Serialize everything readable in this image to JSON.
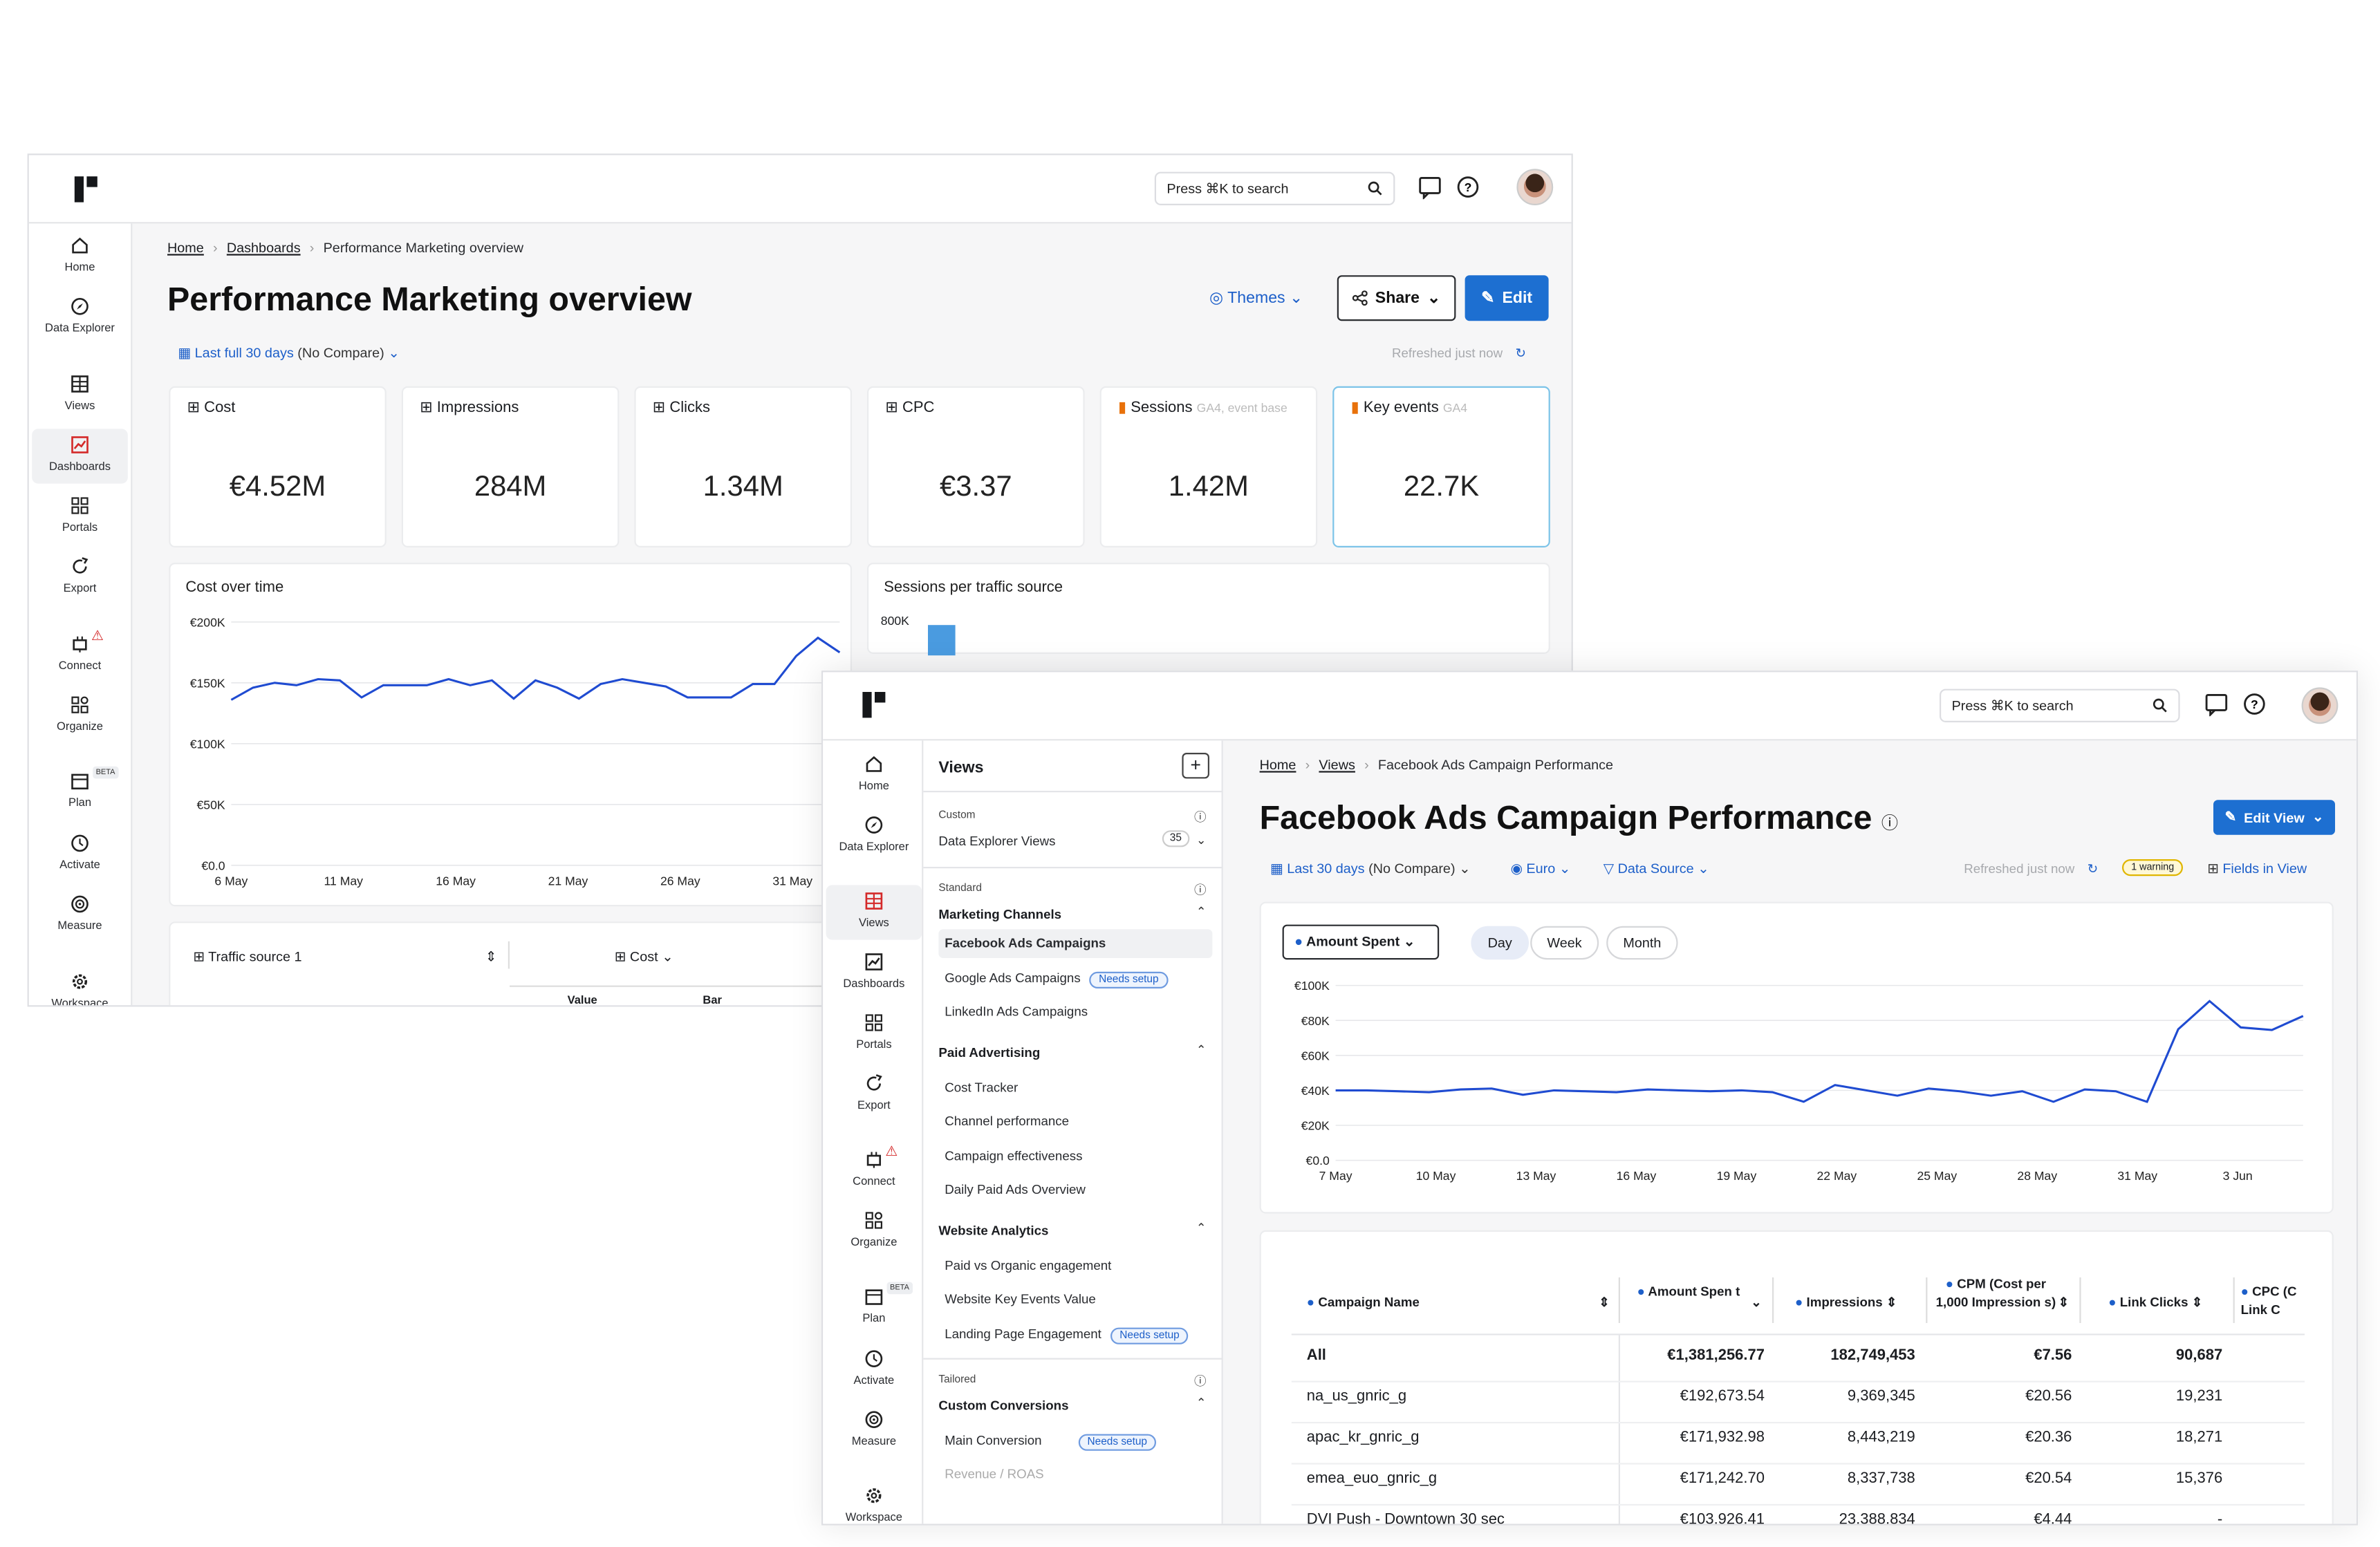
{
  "app": {
    "search_placeholder": "Press ⌘K to search"
  },
  "nav": {
    "home": "Home",
    "data_explorer": "Data Explorer",
    "views": "Views",
    "dashboards": "Dashboards",
    "portals": "Portals",
    "export": "Export",
    "connect": "Connect",
    "organize": "Organize",
    "plan": "Plan",
    "plan_badge": "BETA",
    "activate": "Activate",
    "measure": "Measure",
    "workspace": "Workspace"
  },
  "dashboard": {
    "breadcrumb": [
      "Home",
      "Dashboards",
      "Performance Marketing overview"
    ],
    "title": "Performance Marketing overview",
    "themes_label": "Themes",
    "share_label": "Share",
    "edit_label": "Edit",
    "date_range": "Last full 30 days",
    "compare": "(No Compare)",
    "refreshed": "Refreshed just now",
    "kpis": [
      {
        "label": "Cost",
        "sub": "",
        "value": "€4.52M"
      },
      {
        "label": "Impressions",
        "sub": "",
        "value": "284M"
      },
      {
        "label": "Clicks",
        "sub": "",
        "value": "1.34M"
      },
      {
        "label": "CPC",
        "sub": "",
        "value": "€3.37"
      },
      {
        "label": "Sessions",
        "sub": "GA4, event base",
        "value": "1.42M"
      },
      {
        "label": "Key events",
        "sub": "GA4",
        "value": "22.7K"
      }
    ],
    "cost_chart_title": "Cost over time",
    "sessions_chart_title": "Sessions per traffic source",
    "sessions_tick": "800K",
    "table": {
      "dimension": "Traffic source 1",
      "metric": "Cost",
      "sub_headers": [
        "Value",
        "Bar"
      ]
    }
  },
  "cost_chart": {
    "chart_data": {
      "type": "line",
      "title": "Cost over time",
      "x_ticks": [
        "6 May",
        "11 May",
        "16 May",
        "21 May",
        "26 May",
        "31 May"
      ],
      "y_ticks": [
        "€200K",
        "€150K",
        "€100K",
        "€50K",
        "€0.0"
      ],
      "ylim": [
        0,
        200000
      ],
      "series": [
        {
          "values": [
            136000,
            146000,
            150000,
            148000,
            153000,
            152000,
            138000,
            148000,
            148000,
            148000,
            153000,
            148000,
            152000,
            137000,
            152000,
            146000,
            137000,
            149000,
            153000,
            150000,
            147000,
            138000,
            138000,
            138000,
            149000,
            149000,
            172000,
            187000,
            175000
          ]
        }
      ]
    }
  },
  "views_panel": {
    "title": "Views",
    "custom_label": "Custom",
    "data_explorer_views": "Data Explorer Views",
    "data_explorer_count": "35",
    "standard_label": "Standard",
    "marketing_channels": "Marketing Channels",
    "marketing_items": [
      "Facebook Ads Campaigns",
      "Google Ads Campaigns",
      "LinkedIn Ads Campaigns"
    ],
    "paid_advertising": "Paid Advertising",
    "paid_items": [
      "Cost Tracker",
      "Channel performance",
      "Campaign effectiveness",
      "Daily Paid Ads Overview"
    ],
    "website_analytics": "Website Analytics",
    "website_items": [
      "Paid vs Organic engagement",
      "Website Key Events Value",
      "Landing Page Engagement"
    ],
    "tailored_label": "Tailored",
    "custom_conversions": "Custom Conversions",
    "conversion_items": [
      "Main Conversion",
      "Revenue / ROAS"
    ],
    "needs_setup": "Needs setup"
  },
  "fb": {
    "breadcrumb": [
      "Home",
      "Views",
      "Facebook Ads Campaign Performance"
    ],
    "title": "Facebook Ads Campaign Performance",
    "edit_view": "Edit View",
    "date_range": "Last 30 days",
    "compare": "(No Compare)",
    "currency": "Euro",
    "data_source": "Data Source",
    "refreshed": "Refreshed just now",
    "warning": "1 warning",
    "fields_in_view": "Fields in View",
    "metric_select": "Amount Spent",
    "granularity": [
      "Day",
      "Week",
      "Month"
    ],
    "table_headers": [
      "Campaign Name",
      "Amount Spen t",
      "Impressions",
      "CPM (Cost per 1,000 Impression s)",
      "Link Clicks",
      "CPC (C Link C"
    ],
    "rows": [
      {
        "name": "All",
        "amount": "€1,381,256.77",
        "impressions": "182,749,453",
        "cpm": "€7.56",
        "clicks": "90,687"
      },
      {
        "name": "na_us_gnric_g",
        "amount": "€192,673.54",
        "impressions": "9,369,345",
        "cpm": "€20.56",
        "clicks": "19,231"
      },
      {
        "name": "apac_kr_gnric_g",
        "amount": "€171,932.98",
        "impressions": "8,443,219",
        "cpm": "€20.36",
        "clicks": "18,271"
      },
      {
        "name": "emea_euo_gnric_g",
        "amount": "€171,242.70",
        "impressions": "8,337,738",
        "cpm": "€20.54",
        "clicks": "15,376"
      },
      {
        "name": "DVI Push - Downtown 30 sec",
        "amount": "€103,926.41",
        "impressions": "23,388,834",
        "cpm": "€4.44",
        "clicks": "-"
      }
    ]
  },
  "fb_chart": {
    "chart_data": {
      "type": "line",
      "title": "",
      "x_ticks": [
        "7 May",
        "10 May",
        "13 May",
        "16 May",
        "19 May",
        "22 May",
        "25 May",
        "28 May",
        "31 May",
        "3 Jun"
      ],
      "y_ticks": [
        "€100K",
        "€80K",
        "€60K",
        "€40K",
        "€20K",
        "€0.0"
      ],
      "ylim": [
        0,
        100000
      ],
      "series": [
        {
          "name": "Amount Spent",
          "values": [
            40000,
            40000,
            39500,
            39000,
            40500,
            41000,
            37500,
            40000,
            39500,
            39000,
            40500,
            40000,
            39500,
            40000,
            39000,
            33500,
            43000,
            40000,
            37000,
            41000,
            39500,
            37000,
            39500,
            33500,
            40500,
            39500,
            33500,
            75000,
            91000,
            76000,
            74500,
            82500
          ]
        }
      ]
    }
  },
  "colors": {
    "accent": "#1d6fd1",
    "line": "#1f4bd1",
    "bar": "#4a9be0",
    "warn": "#d42a2a"
  }
}
